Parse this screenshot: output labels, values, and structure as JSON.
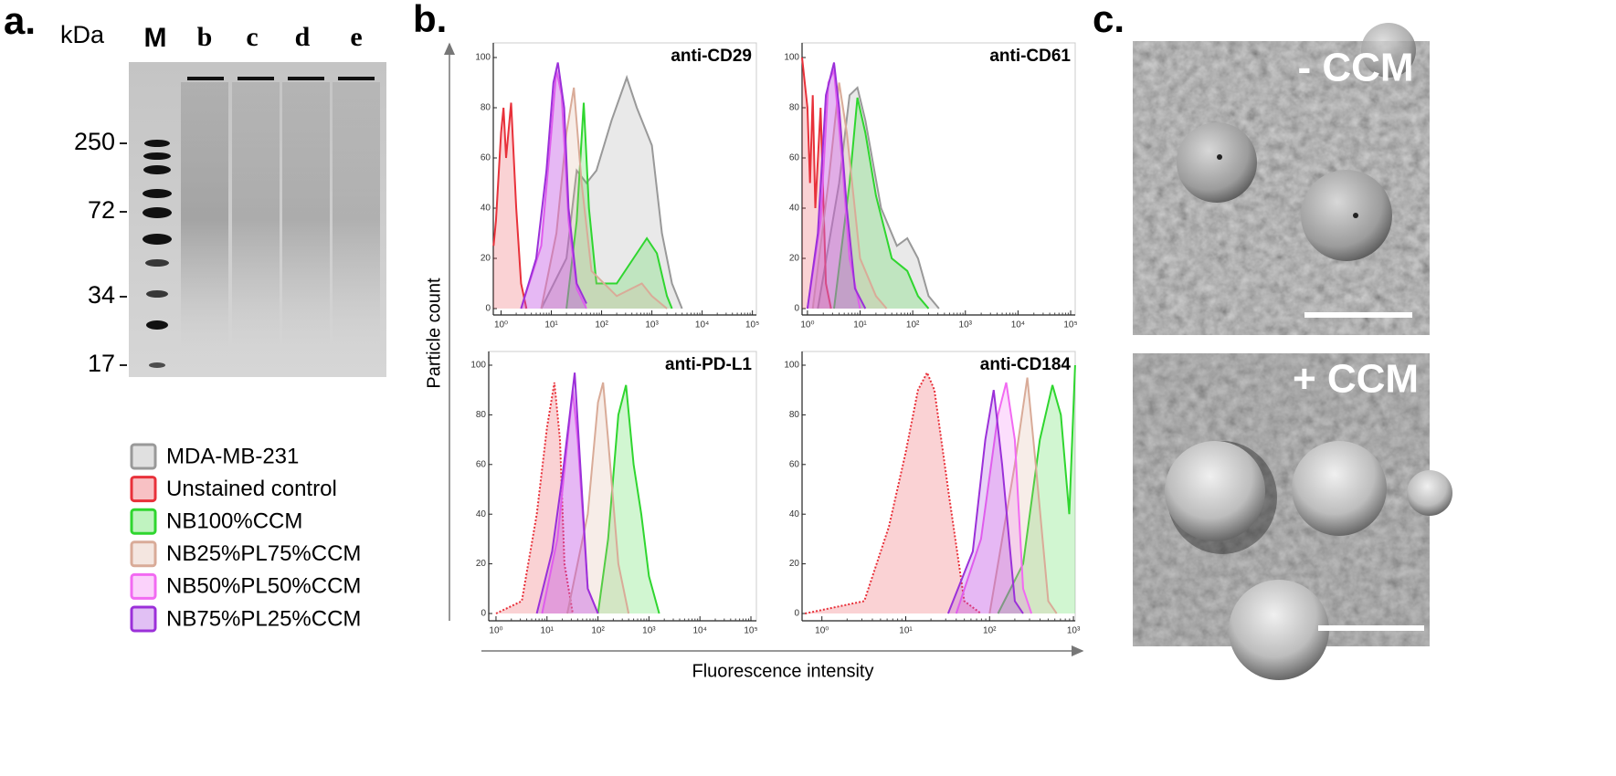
{
  "panel_a": {
    "label": "a.",
    "unit": "kDa",
    "lanes": [
      "M",
      "b",
      "c",
      "d",
      "e"
    ],
    "markers": [
      "250",
      "72",
      "34",
      "17"
    ]
  },
  "legend": [
    {
      "name": "MDA-MB-231",
      "color": "#999999"
    },
    {
      "name": "Unstained control",
      "color": "#e8313a"
    },
    {
      "name": "NB100%CCM",
      "color": "#2fd62f"
    },
    {
      "name": "NB25%PL75%CCM",
      "color": "#d9ab98"
    },
    {
      "name": "NB50%PL50%CCM",
      "color": "#f26af2"
    },
    {
      "name": "NB75%PL25%CCM",
      "color": "#9b30d9"
    }
  ],
  "panel_b": {
    "label": "b.",
    "y_label": "Particle count",
    "x_label": "Fluorescence intensity",
    "panels": [
      {
        "title": "anti-CD29",
        "xlim": [
          0.7,
          120000
        ],
        "ylim": [
          0,
          100
        ],
        "yticks": [
          0,
          20,
          40,
          60,
          80,
          100
        ],
        "xticks": [
          {
            "value": 1,
            "label": "10⁰"
          },
          {
            "value": 10,
            "label": "10¹"
          },
          {
            "value": 100,
            "label": "10²"
          },
          {
            "value": 1000,
            "label": "10³"
          },
          {
            "value": 10000,
            "label": "10⁴"
          },
          {
            "value": 100000,
            "label": "10⁵"
          }
        ],
        "series": [
          {
            "x": [
              6.3,
              20,
              32,
              50,
              79,
              158,
              316,
              501,
              1000,
              1585,
              2512,
              3981
            ],
            "values": [
              0,
              20,
              55,
              50,
              55,
              75,
              92,
              80,
              65,
              30,
              10,
              0
            ]
          },
          {
            "x": [
              0.71,
              0.79,
              1,
              1.12,
              1.26,
              1.58,
              2,
              2.5,
              3.2
            ],
            "values": [
              25,
              35,
              70,
              80,
              60,
              82,
              40,
              10,
              0
            ]
          },
          {
            "x": [
              20,
              32,
              44,
              56,
              79,
              200,
              501,
              794,
              1259,
              1995,
              2512
            ],
            "values": [
              0,
              35,
              82,
              40,
              10,
              10,
              22,
              28,
              22,
              5,
              0
            ]
          },
          {
            "x": [
              6.3,
              12.6,
              20,
              28,
              40,
              63,
              200,
              631,
              1000,
              1995
            ],
            "values": [
              0,
              30,
              70,
              88,
              50,
              15,
              5,
              10,
              5,
              0
            ]
          },
          {
            "x": [
              2.5,
              6.3,
              10,
              12.6,
              16,
              22,
              32,
              50
            ],
            "values": [
              0,
              25,
              70,
              95,
              85,
              35,
              8,
              0
            ]
          },
          {
            "x": [
              2.5,
              5,
              8,
              11,
              13.5,
              18,
              22,
              32,
              50
            ],
            "values": [
              0,
              20,
              55,
              90,
              98,
              80,
              40,
              10,
              2
            ]
          }
        ]
      },
      {
        "title": "anti-CD61",
        "xlim": [
          0.79,
          122000
        ],
        "ylim": [
          0,
          100
        ],
        "yticks": [
          0,
          20,
          40,
          60,
          80,
          100
        ],
        "xticks": [
          {
            "value": 1,
            "label": "10⁰"
          },
          {
            "value": 10,
            "label": "10¹"
          },
          {
            "value": 100,
            "label": "10²"
          },
          {
            "value": 1000,
            "label": "10³"
          },
          {
            "value": 10000,
            "label": "10⁴"
          },
          {
            "value": 100000,
            "label": "10⁵"
          }
        ],
        "series": [
          {
            "x": [
              1.58,
              4,
              6.3,
              8.9,
              12.6,
              25,
              50,
              79,
              126,
              200,
              316
            ],
            "values": [
              0,
              50,
              85,
              88,
              75,
              40,
              25,
              28,
              20,
              5,
              0
            ]
          },
          {
            "x": [
              0.79,
              1,
              1.12,
              1.26,
              1.41,
              1.78,
              2.24,
              2.8
            ],
            "values": [
              100,
              80,
              50,
              85,
              40,
              80,
              10,
              0
            ]
          },
          {
            "x": [
              3.2,
              6.3,
              8.9,
              12.6,
              20,
              40,
              79,
              126,
              200
            ],
            "values": [
              0,
              50,
              84,
              70,
              45,
              20,
              15,
              5,
              0
            ]
          },
          {
            "x": [
              1.26,
              2.5,
              4,
              5.6,
              10,
              20,
              32
            ],
            "values": [
              0,
              50,
              90,
              70,
              20,
              5,
              0
            ]
          },
          {
            "x": [
              1,
              1.78,
              2.5,
              3.2,
              4.5,
              6.3,
              10
            ],
            "values": [
              0,
              35,
              90,
              95,
              60,
              20,
              0
            ]
          },
          {
            "x": [
              1,
              1.58,
              2.24,
              3.2,
              4,
              5.6,
              8,
              12.6
            ],
            "values": [
              0,
              30,
              85,
              98,
              80,
              40,
              8,
              0
            ]
          }
        ]
      },
      {
        "title": "anti-PD-L1",
        "xlim": [
          0.72,
          128000
        ],
        "ylim": [
          0,
          100
        ],
        "yticks": [
          0,
          20,
          40,
          60,
          80,
          100
        ],
        "xticks": [
          {
            "value": 1,
            "label": "10⁰"
          },
          {
            "value": 10,
            "label": "10¹"
          },
          {
            "value": 100,
            "label": "10²"
          },
          {
            "value": 1000,
            "label": "10³"
          },
          {
            "value": 10000,
            "label": "10⁴"
          },
          {
            "value": 100000,
            "label": "10⁵"
          }
        ],
        "series": [
          null,
          {
            "x": [
              1,
              3.2,
              6.3,
              10,
              14,
              18,
              22,
              32
            ],
            "values": [
              0,
              5,
              40,
              75,
              93,
              70,
              20,
              0
            ],
            "line_style": "dotted"
          },
          {
            "x": [
              100,
              158,
              251,
              355,
              501,
              708,
              1000,
              1585
            ],
            "values": [
              0,
              30,
              80,
              92,
              60,
              40,
              15,
              0
            ]
          },
          {
            "x": [
              25,
              63,
              100,
              126,
              158,
              251,
              398
            ],
            "values": [
              0,
              40,
              85,
              93,
              70,
              20,
              0
            ]
          },
          {
            "x": [
              8,
              16,
              32,
              40,
              63,
              100
            ],
            "values": [
              0,
              30,
              90,
              70,
              10,
              0
            ]
          },
          {
            "x": [
              6.3,
              12.6,
              20,
              28,
              35,
              45,
              63,
              100
            ],
            "values": [
              0,
              25,
              55,
              80,
              97,
              60,
              10,
              0
            ]
          }
        ]
      },
      {
        "title": "anti-CD184",
        "xlim": [
          0.58,
          1050
        ],
        "ylim": [
          0,
          100
        ],
        "yticks": [
          0,
          20,
          40,
          60,
          80,
          100
        ],
        "xticks": [
          {
            "value": 1,
            "label": "10⁰"
          },
          {
            "value": 10,
            "label": "10¹"
          },
          {
            "value": 100,
            "label": "10²"
          },
          {
            "value": 1000,
            "label": "10³"
          }
        ],
        "series": [
          null,
          {
            "x": [
              0.63,
              3.2,
              6.3,
              10,
              14,
              18,
              22,
              32,
              50,
              79
            ],
            "values": [
              0,
              5,
              35,
              65,
              90,
              97,
              90,
              50,
              5,
              0
            ],
            "line_style": "dotted"
          },
          {
            "x": [
              126,
              251,
              398,
              562,
              708,
              891,
              1047
            ],
            "values": [
              0,
              20,
              70,
              92,
              80,
              40,
              100
            ]
          },
          {
            "x": [
              100,
              200,
              282,
              355,
              501,
              631
            ],
            "values": [
              0,
              60,
              95,
              60,
              5,
              0
            ]
          },
          {
            "x": [
              40,
              79,
              126,
              158,
              200,
              251,
              316
            ],
            "values": [
              0,
              30,
              80,
              93,
              70,
              10,
              0
            ]
          },
          {
            "x": [
              32,
              63,
              89,
              112,
              141,
              200,
              251
            ],
            "values": [
              0,
              25,
              70,
              90,
              60,
              5,
              0
            ]
          }
        ]
      }
    ]
  },
  "panel_c": {
    "label": "c.",
    "images": [
      {
        "label": "- CCM"
      },
      {
        "label": "+ CCM"
      }
    ]
  }
}
